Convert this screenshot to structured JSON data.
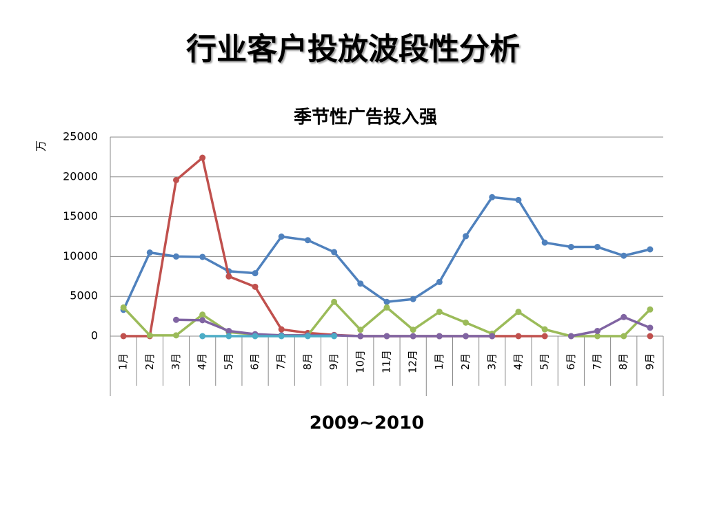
{
  "page": {
    "title": "行业客户投放波段性分析"
  },
  "chart_data": {
    "type": "line",
    "title": "季节性广告投入强",
    "y_label": "万",
    "x_label": "2009~2010",
    "categories": [
      "1月",
      "2月",
      "3月",
      "4月",
      "5月",
      "6月",
      "7月",
      "8月",
      "9月",
      "10月",
      "11月",
      "12月",
      "1月",
      "2月",
      "3月",
      "4月",
      "5月",
      "6月",
      "7月",
      "8月",
      "9月"
    ],
    "ylim": [
      0,
      25000
    ],
    "yticks": [
      0,
      5000,
      10000,
      15000,
      20000,
      25000
    ],
    "grid": true,
    "series": [
      {
        "color": "#4f81bd",
        "values": [
          3300,
          10500,
          10000,
          9950,
          8150,
          7900,
          12500,
          12050,
          10550,
          6600,
          4300,
          4650,
          6800,
          12550,
          17450,
          17100,
          11750,
          11200,
          11200,
          10100,
          10900
        ]
      },
      {
        "color": "#c0504d",
        "values": [
          0,
          0,
          19600,
          22400,
          7500,
          6200,
          850,
          400,
          150,
          0,
          0,
          0,
          0,
          0,
          0,
          0,
          0,
          null,
          null,
          null,
          0
        ]
      },
      {
        "color": "#9bbb59",
        "values": [
          3600,
          100,
          100,
          2700,
          500,
          200,
          100,
          100,
          4300,
          800,
          3600,
          800,
          3050,
          1700,
          300,
          3050,
          850,
          0,
          0,
          0,
          3350
        ]
      },
      {
        "color": "#8064a2",
        "values": [
          null,
          null,
          2050,
          2000,
          650,
          250,
          100,
          100,
          100,
          0,
          0,
          0,
          0,
          0,
          0,
          null,
          null,
          0,
          650,
          2400,
          1050
        ]
      },
      {
        "color": "#4bacc6",
        "values": [
          null,
          null,
          null,
          0,
          0,
          0,
          0,
          0,
          0,
          null,
          null,
          null,
          null,
          null,
          null,
          null,
          null,
          null,
          null,
          null,
          null
        ]
      }
    ]
  }
}
